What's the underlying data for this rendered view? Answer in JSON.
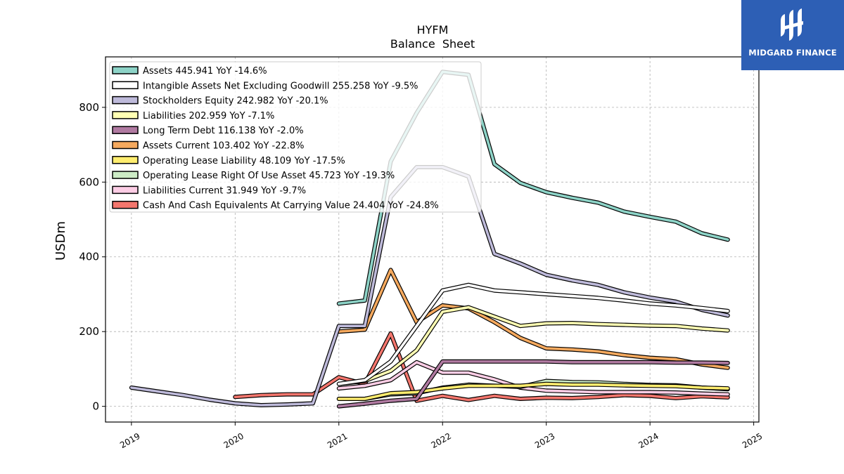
{
  "brand": {
    "name": "MIDGARD FINANCE",
    "color": "#2d5fb5"
  },
  "chart_data": {
    "type": "line",
    "title": "HYFM",
    "subtitle": "Balance  Sheet",
    "ylabel": "USDm",
    "xlabel": "",
    "xlim": [
      2018.75,
      2025.05
    ],
    "ylim": [
      -42,
      935
    ],
    "x_ticks": [
      "2019",
      "2020",
      "2021",
      "2022",
      "2023",
      "2024",
      "2025"
    ],
    "y_ticks": [
      "0",
      "200",
      "400",
      "600",
      "800"
    ],
    "grid": true,
    "legend_position": "top-left",
    "series": [
      {
        "name": "Assets  445.941 YoY -14.6%",
        "color": "#8dd3c7",
        "points": [
          [
            2021.0,
            275
          ],
          [
            2021.25,
            283
          ],
          [
            2021.5,
            655
          ],
          [
            2021.75,
            785
          ],
          [
            2022.0,
            895
          ],
          [
            2022.25,
            887
          ],
          [
            2022.5,
            648
          ],
          [
            2022.75,
            598
          ],
          [
            2023.0,
            573
          ],
          [
            2023.25,
            558
          ],
          [
            2023.5,
            545
          ],
          [
            2023.75,
            521
          ],
          [
            2024.0,
            507
          ],
          [
            2024.25,
            494
          ],
          [
            2024.5,
            463
          ],
          [
            2024.75,
            446
          ]
        ]
      },
      {
        "name": "Intangible Assets Net Excluding Goodwill  255.258 YoY -9.5%",
        "color": "#ffffff",
        "points": [
          [
            2021.0,
            60
          ],
          [
            2021.25,
            70
          ],
          [
            2021.5,
            120
          ],
          [
            2021.75,
            215
          ],
          [
            2022.0,
            310
          ],
          [
            2022.25,
            325
          ],
          [
            2022.5,
            310
          ],
          [
            2022.75,
            305
          ],
          [
            2023.0,
            300
          ],
          [
            2023.25,
            295
          ],
          [
            2023.5,
            290
          ],
          [
            2023.75,
            283
          ],
          [
            2024.0,
            275
          ],
          [
            2024.25,
            270
          ],
          [
            2024.5,
            263
          ],
          [
            2024.75,
            255
          ]
        ]
      },
      {
        "name": "Stockholders Equity  242.982 YoY -20.1%",
        "color": "#bebada",
        "points": [
          [
            2019.0,
            50
          ],
          [
            2019.25,
            40
          ],
          [
            2019.5,
            30
          ],
          [
            2019.75,
            18
          ],
          [
            2020.0,
            8
          ],
          [
            2020.25,
            3
          ],
          [
            2020.5,
            5
          ],
          [
            2020.75,
            8
          ],
          [
            2021.0,
            215
          ],
          [
            2021.25,
            215
          ],
          [
            2021.5,
            560
          ],
          [
            2021.75,
            640
          ],
          [
            2022.0,
            640
          ],
          [
            2022.25,
            615
          ],
          [
            2022.5,
            408
          ],
          [
            2022.75,
            382
          ],
          [
            2023.0,
            352
          ],
          [
            2023.25,
            337
          ],
          [
            2023.5,
            325
          ],
          [
            2023.75,
            305
          ],
          [
            2024.0,
            291
          ],
          [
            2024.25,
            280
          ],
          [
            2024.5,
            258
          ],
          [
            2024.75,
            243
          ]
        ]
      },
      {
        "name": "Liabilities  202.959 YoY -7.1%",
        "color": "#ffffb3",
        "points": [
          [
            2021.0,
            60
          ],
          [
            2021.25,
            68
          ],
          [
            2021.5,
            95
          ],
          [
            2021.75,
            150
          ],
          [
            2022.0,
            253
          ],
          [
            2022.25,
            265
          ],
          [
            2022.5,
            240
          ],
          [
            2022.75,
            215
          ],
          [
            2023.0,
            222
          ],
          [
            2023.25,
            223
          ],
          [
            2023.5,
            220
          ],
          [
            2023.75,
            218
          ],
          [
            2024.0,
            216
          ],
          [
            2024.25,
            215
          ],
          [
            2024.5,
            208
          ],
          [
            2024.75,
            203
          ]
        ]
      },
      {
        "name": "Long Term Debt  116.138 YoY -2.0%",
        "color": "#b07aa1",
        "points": [
          [
            2021.0,
            0
          ],
          [
            2021.25,
            7
          ],
          [
            2021.5,
            15
          ],
          [
            2021.75,
            20
          ],
          [
            2022.0,
            120
          ],
          [
            2022.25,
            120
          ],
          [
            2022.5,
            120
          ],
          [
            2022.75,
            120
          ],
          [
            2023.0,
            120
          ],
          [
            2023.25,
            118
          ],
          [
            2023.5,
            118
          ],
          [
            2023.75,
            118
          ],
          [
            2024.0,
            118
          ],
          [
            2024.25,
            117
          ],
          [
            2024.5,
            117
          ],
          [
            2024.75,
            116
          ]
        ]
      },
      {
        "name": "Assets Current  103.402 YoY -22.8%",
        "color": "#f5a95e",
        "points": [
          [
            2021.0,
            200
          ],
          [
            2021.25,
            205
          ],
          [
            2021.5,
            365
          ],
          [
            2021.75,
            225
          ],
          [
            2022.0,
            270
          ],
          [
            2022.25,
            262
          ],
          [
            2022.5,
            225
          ],
          [
            2022.75,
            183
          ],
          [
            2023.0,
            155
          ],
          [
            2023.25,
            152
          ],
          [
            2023.5,
            147
          ],
          [
            2023.75,
            137
          ],
          [
            2024.0,
            130
          ],
          [
            2024.25,
            126
          ],
          [
            2024.5,
            112
          ],
          [
            2024.75,
            103
          ]
        ]
      },
      {
        "name": "Operating Lease Liability  48.109 YoY -17.5%",
        "color": "#ffed6f",
        "points": [
          [
            2021.0,
            20
          ],
          [
            2021.25,
            20
          ],
          [
            2021.5,
            35
          ],
          [
            2021.75,
            38
          ],
          [
            2022.0,
            48
          ],
          [
            2022.25,
            55
          ],
          [
            2022.5,
            55
          ],
          [
            2022.75,
            55
          ],
          [
            2023.0,
            60
          ],
          [
            2023.25,
            58
          ],
          [
            2023.5,
            58
          ],
          [
            2023.75,
            56
          ],
          [
            2024.0,
            55
          ],
          [
            2024.25,
            54
          ],
          [
            2024.5,
            50
          ],
          [
            2024.75,
            48
          ]
        ]
      },
      {
        "name": "Operating Lease Right Of Use Asset  45.723 YoY -19.3%",
        "color": "#ccebc5",
        "points": [
          [
            2021.0,
            20
          ],
          [
            2021.25,
            20
          ],
          [
            2021.5,
            32
          ],
          [
            2021.75,
            35
          ],
          [
            2022.0,
            50
          ],
          [
            2022.25,
            58
          ],
          [
            2022.5,
            55
          ],
          [
            2022.75,
            52
          ],
          [
            2023.0,
            68
          ],
          [
            2023.25,
            65
          ],
          [
            2023.5,
            64
          ],
          [
            2023.75,
            60
          ],
          [
            2024.0,
            57
          ],
          [
            2024.25,
            56
          ],
          [
            2024.5,
            50
          ],
          [
            2024.75,
            46
          ]
        ]
      },
      {
        "name": "Liabilities Current  31.949 YoY -9.7%",
        "color": "#fccde5",
        "points": [
          [
            2021.0,
            48
          ],
          [
            2021.25,
            55
          ],
          [
            2021.5,
            70
          ],
          [
            2021.75,
            118
          ],
          [
            2022.0,
            90
          ],
          [
            2022.25,
            90
          ],
          [
            2022.5,
            72
          ],
          [
            2022.75,
            50
          ],
          [
            2023.0,
            42
          ],
          [
            2023.25,
            40
          ],
          [
            2023.5,
            38
          ],
          [
            2023.75,
            38
          ],
          [
            2024.0,
            38
          ],
          [
            2024.25,
            37
          ],
          [
            2024.5,
            34
          ],
          [
            2024.75,
            32
          ]
        ]
      },
      {
        "name": "Cash And Cash Equivalents At Carrying Value  24.404 YoY -24.8%",
        "color": "#f4766d",
        "points": [
          [
            2020.0,
            25
          ],
          [
            2020.25,
            30
          ],
          [
            2020.5,
            32
          ],
          [
            2020.75,
            32
          ],
          [
            2021.0,
            78
          ],
          [
            2021.25,
            60
          ],
          [
            2021.5,
            195
          ],
          [
            2021.75,
            15
          ],
          [
            2022.0,
            28
          ],
          [
            2022.25,
            17
          ],
          [
            2022.5,
            28
          ],
          [
            2022.75,
            20
          ],
          [
            2023.0,
            23
          ],
          [
            2023.25,
            22
          ],
          [
            2023.5,
            25
          ],
          [
            2023.75,
            30
          ],
          [
            2024.0,
            28
          ],
          [
            2024.25,
            22
          ],
          [
            2024.5,
            27
          ],
          [
            2024.75,
            24
          ]
        ]
      }
    ]
  }
}
